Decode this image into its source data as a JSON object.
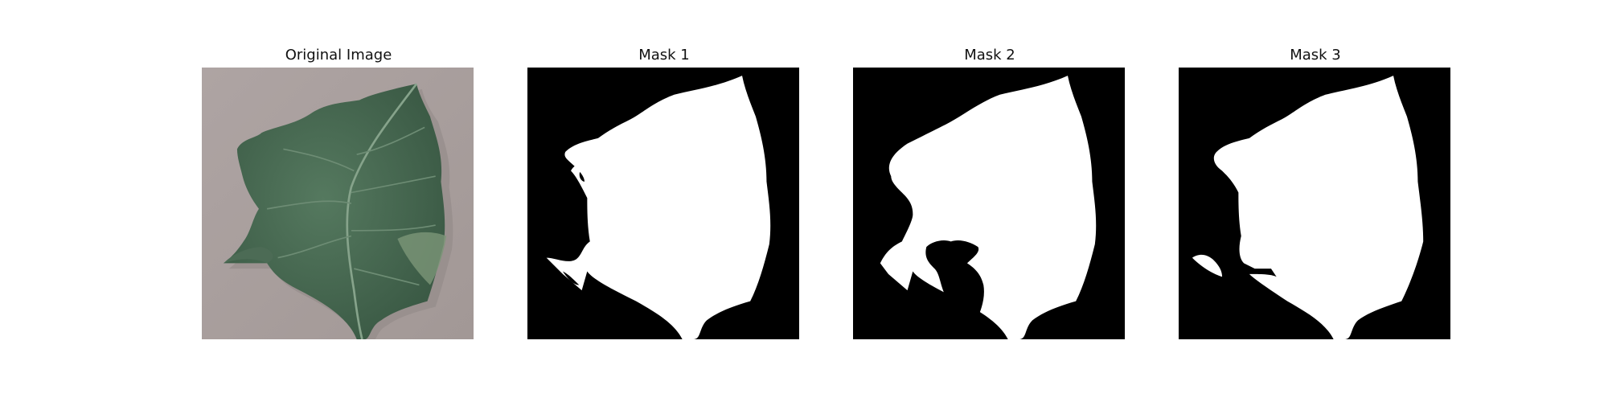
{
  "figure": {
    "panels": [
      {
        "title": "Original Image",
        "kind": "photo"
      },
      {
        "title": "Mask 1",
        "kind": "mask"
      },
      {
        "title": "Mask 2",
        "kind": "mask"
      },
      {
        "title": "Mask 3",
        "kind": "mask"
      }
    ],
    "colors": {
      "background": "#ffffff",
      "photo_background": "#a89e9c",
      "leaf_dark": "#3f5f49",
      "leaf_mid": "#4f7258",
      "leaf_vein": "#7d9a82",
      "mask_background": "#000000",
      "mask_foreground": "#ffffff"
    }
  }
}
